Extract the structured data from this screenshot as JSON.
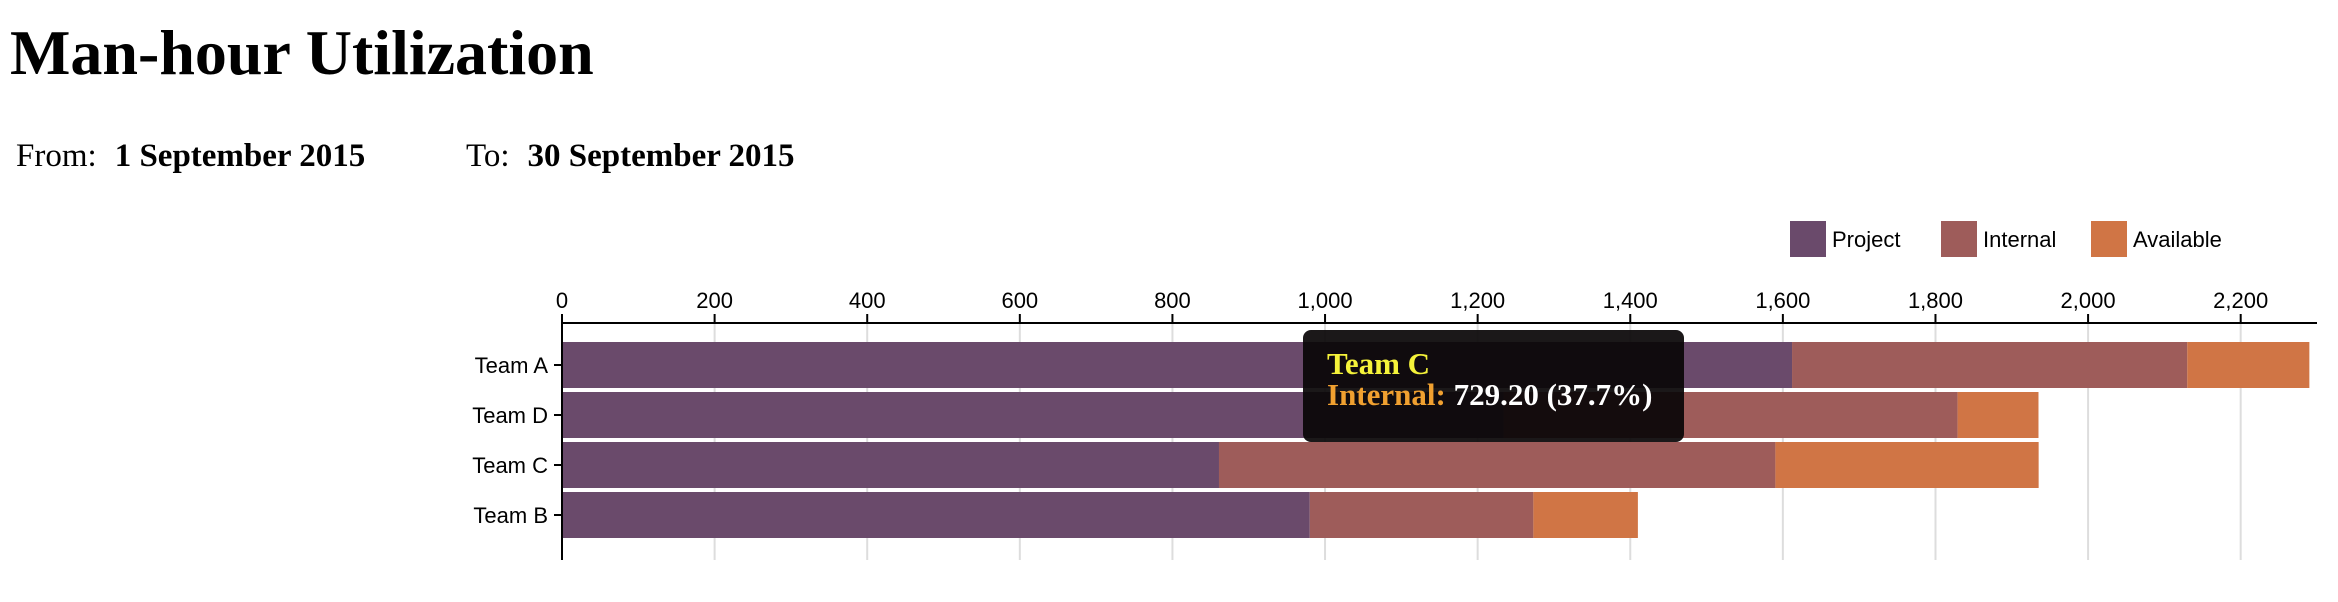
{
  "page": {
    "title": "Man-hour Utilization",
    "from_label": "From:",
    "from_value": "1 September 2015",
    "to_label": "To:",
    "to_value": "30 September 2015"
  },
  "tooltip": {
    "title": "Team C",
    "series": "Internal:",
    "value": "729.20 (37.7%)"
  },
  "chart_data": {
    "type": "bar",
    "orientation": "horizontal",
    "stacked": true,
    "categories": [
      "Team A",
      "Team D",
      "Team C",
      "Team B"
    ],
    "series": [
      {
        "name": "Project",
        "color": "#6a4a6b",
        "values": [
          1612,
          1234,
          861,
          980
        ]
      },
      {
        "name": "Internal",
        "color": "#9e5c5a",
        "values": [
          518,
          595,
          729.2,
          293
        ]
      },
      {
        "name": "Available",
        "color": "#d07545",
        "values": [
          160,
          106,
          345,
          137
        ]
      }
    ],
    "xlim": [
      0,
      2300
    ],
    "x_ticks": [
      "0",
      "200",
      "400",
      "600",
      "800",
      "1,000",
      "1,200",
      "1,400",
      "1,600",
      "1,800",
      "2,000",
      "2,200"
    ],
    "x_tick_values": [
      0,
      200,
      400,
      600,
      800,
      1000,
      1200,
      1400,
      1600,
      1800,
      2000,
      2200
    ],
    "grid": true,
    "axis_position": "top",
    "legend_position": "top-right"
  }
}
